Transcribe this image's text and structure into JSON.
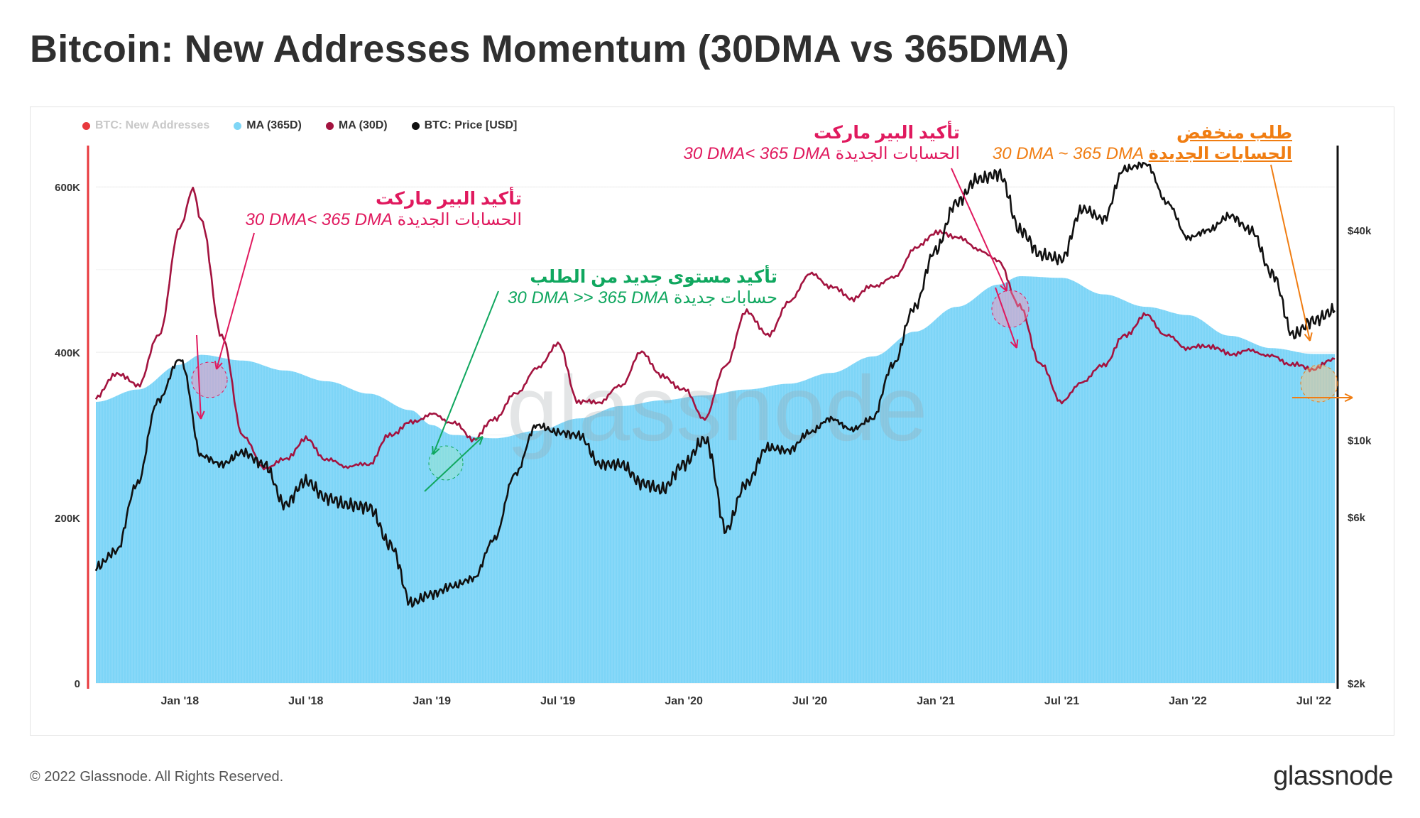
{
  "title": "Bitcoin: New Addresses Momentum (30DMA vs 365DMA)",
  "footer": "© 2022 Glassnode. All Rights Reserved.",
  "brand": "glassnode",
  "watermark": "glassnode",
  "legend": [
    {
      "label": "BTC: New Addresses",
      "color": "#e8383d",
      "muted": true
    },
    {
      "label": "MA (365D)",
      "color": "#7fd6f6"
    },
    {
      "label": "MA (30D)",
      "color": "#a3133f"
    },
    {
      "label": "BTC: Price [USD]",
      "color": "#111111"
    }
  ],
  "annotations": {
    "a1": {
      "heading": "تأكيد البير ماركت",
      "line": "الحسابات الجديدة",
      "lat": "30 DMA< 365 DMA",
      "color": "#e0195e"
    },
    "a2": {
      "heading": "تأكيد مستوى جديد من الطلب",
      "line": "حسابات جديدة",
      "lat": "30 DMA >> 365 DMA",
      "color": "#10a75f"
    },
    "a3": {
      "heading": "تأكيد البير ماركت",
      "line": "الحسابات الجديدة",
      "lat": "30 DMA< 365 DMA",
      "color": "#e0195e"
    },
    "a4": {
      "heading": "طلب منخفض",
      "line": "الحسابات الجديدة",
      "lat": "30 DMA ~ 365 DMA",
      "color": "#f07d12"
    }
  },
  "chart_data": {
    "type": "line",
    "x_ticks": [
      "Jan '18",
      "Jul '18",
      "Jan '19",
      "Jul '19",
      "Jan '20",
      "Jul '20",
      "Jan '21",
      "Jul '21",
      "Jan '22",
      "Jul '22"
    ],
    "y_left_ticks": [
      "0",
      "200K",
      "400K",
      "600K"
    ],
    "y_left_range": [
      0,
      650000
    ],
    "y_right_ticks": [
      "$2k",
      "$6k",
      "$10k",
      "$40k"
    ],
    "y_right_scale": "log",
    "x_range": [
      "2017-09",
      "2022-08"
    ],
    "series": [
      {
        "name": "MA (365D)",
        "style": "area",
        "points": [
          [
            "2017-09",
            340000
          ],
          [
            "2017-11",
            355000
          ],
          [
            "2018-01",
            385000
          ],
          [
            "2018-02",
            397000
          ],
          [
            "2018-04",
            390000
          ],
          [
            "2018-06",
            378000
          ],
          [
            "2018-08",
            365000
          ],
          [
            "2018-10",
            350000
          ],
          [
            "2018-12",
            330000
          ],
          [
            "2019-01",
            312000
          ],
          [
            "2019-02",
            300000
          ],
          [
            "2019-04",
            296000
          ],
          [
            "2019-06",
            305000
          ],
          [
            "2019-08",
            320000
          ],
          [
            "2019-10",
            335000
          ],
          [
            "2019-12",
            342000
          ],
          [
            "2020-02",
            348000
          ],
          [
            "2020-04",
            355000
          ],
          [
            "2020-06",
            362000
          ],
          [
            "2020-08",
            375000
          ],
          [
            "2020-10",
            395000
          ],
          [
            "2020-12",
            425000
          ],
          [
            "2021-02",
            455000
          ],
          [
            "2021-04",
            482000
          ],
          [
            "2021-05",
            492000
          ],
          [
            "2021-07",
            490000
          ],
          [
            "2021-09",
            470000
          ],
          [
            "2021-11",
            455000
          ],
          [
            "2022-01",
            445000
          ],
          [
            "2022-03",
            420000
          ],
          [
            "2022-05",
            405000
          ],
          [
            "2022-07",
            398000
          ],
          [
            "2022-08",
            398000
          ]
        ]
      },
      {
        "name": "MA (30D)",
        "style": "line",
        "points": [
          [
            "2017-09",
            345000
          ],
          [
            "2017-10",
            375000
          ],
          [
            "2017-11",
            360000
          ],
          [
            "2017-12",
            420000
          ],
          [
            "2018-01",
            550000
          ],
          [
            "2018-01-20",
            598000
          ],
          [
            "2018-02",
            560000
          ],
          [
            "2018-03",
            420000
          ],
          [
            "2018-04",
            300000
          ],
          [
            "2018-05",
            260000
          ],
          [
            "2018-06",
            270000
          ],
          [
            "2018-07",
            295000
          ],
          [
            "2018-08",
            270000
          ],
          [
            "2018-09",
            262000
          ],
          [
            "2018-10",
            265000
          ],
          [
            "2018-11",
            300000
          ],
          [
            "2018-12",
            315000
          ],
          [
            "2019-01",
            325000
          ],
          [
            "2019-02",
            315000
          ],
          [
            "2019-03",
            295000
          ],
          [
            "2019-04",
            320000
          ],
          [
            "2019-05",
            350000
          ],
          [
            "2019-06",
            380000
          ],
          [
            "2019-07",
            410000
          ],
          [
            "2019-08",
            340000
          ],
          [
            "2019-09",
            340000
          ],
          [
            "2019-10",
            360000
          ],
          [
            "2019-11",
            400000
          ],
          [
            "2019-12",
            370000
          ],
          [
            "2020-01",
            355000
          ],
          [
            "2020-02",
            320000
          ],
          [
            "2020-03",
            385000
          ],
          [
            "2020-04",
            450000
          ],
          [
            "2020-05",
            420000
          ],
          [
            "2020-06",
            460000
          ],
          [
            "2020-07",
            495000
          ],
          [
            "2020-08",
            480000
          ],
          [
            "2020-09",
            465000
          ],
          [
            "2020-10",
            480000
          ],
          [
            "2020-11",
            490000
          ],
          [
            "2020-12",
            525000
          ],
          [
            "2021-01",
            545000
          ],
          [
            "2021-02",
            540000
          ],
          [
            "2021-03",
            525000
          ],
          [
            "2021-04",
            510000
          ],
          [
            "2021-05",
            455000
          ],
          [
            "2021-06",
            385000
          ],
          [
            "2021-07",
            340000
          ],
          [
            "2021-08",
            365000
          ],
          [
            "2021-09",
            385000
          ],
          [
            "2021-10",
            420000
          ],
          [
            "2021-11",
            445000
          ],
          [
            "2021-12",
            420000
          ],
          [
            "2022-01",
            405000
          ],
          [
            "2022-02",
            408000
          ],
          [
            "2022-03",
            398000
          ],
          [
            "2022-04",
            402000
          ],
          [
            "2022-05",
            395000
          ],
          [
            "2022-06",
            385000
          ],
          [
            "2022-07",
            380000
          ],
          [
            "2022-08",
            392000
          ]
        ]
      },
      {
        "name": "BTC: Price [USD]",
        "style": "line",
        "axis": "right",
        "points": [
          [
            "2017-09",
            4300
          ],
          [
            "2017-10",
            4800
          ],
          [
            "2017-11",
            7500
          ],
          [
            "2017-12",
            13000
          ],
          [
            "2018-01",
            17000
          ],
          [
            "2018-02",
            9000
          ],
          [
            "2018-03",
            8500
          ],
          [
            "2018-04",
            9200
          ],
          [
            "2018-05",
            8500
          ],
          [
            "2018-06",
            6500
          ],
          [
            "2018-07",
            7600
          ],
          [
            "2018-08",
            6800
          ],
          [
            "2018-09",
            6500
          ],
          [
            "2018-10",
            6400
          ],
          [
            "2018-11",
            5000
          ],
          [
            "2018-12",
            3400
          ],
          [
            "2019-01",
            3600
          ],
          [
            "2019-02",
            3800
          ],
          [
            "2019-03",
            4000
          ],
          [
            "2019-04",
            5200
          ],
          [
            "2019-05",
            8000
          ],
          [
            "2019-06",
            11000
          ],
          [
            "2019-07",
            10500
          ],
          [
            "2019-08",
            10300
          ],
          [
            "2019-09",
            8500
          ],
          [
            "2019-10",
            8500
          ],
          [
            "2019-11",
            7500
          ],
          [
            "2019-12",
            7200
          ],
          [
            "2020-01",
            8500
          ],
          [
            "2020-02",
            10000
          ],
          [
            "2020-03",
            5500
          ],
          [
            "2020-04",
            7500
          ],
          [
            "2020-05",
            9500
          ],
          [
            "2020-06",
            9300
          ],
          [
            "2020-07",
            10500
          ],
          [
            "2020-08",
            11500
          ],
          [
            "2020-09",
            10700
          ],
          [
            "2020-10",
            11500
          ],
          [
            "2020-11",
            16500
          ],
          [
            "2020-12",
            24000
          ],
          [
            "2021-01",
            35000
          ],
          [
            "2021-02",
            48000
          ],
          [
            "2021-03",
            56000
          ],
          [
            "2021-04",
            58000
          ],
          [
            "2021-05",
            40000
          ],
          [
            "2021-06",
            34000
          ],
          [
            "2021-07",
            33000
          ],
          [
            "2021-08",
            46000
          ],
          [
            "2021-09",
            43000
          ],
          [
            "2021-10",
            60000
          ],
          [
            "2021-11",
            62000
          ],
          [
            "2021-12",
            48000
          ],
          [
            "2022-01",
            38000
          ],
          [
            "2022-02",
            40000
          ],
          [
            "2022-03",
            44000
          ],
          [
            "2022-04",
            40000
          ],
          [
            "2022-05",
            30000
          ],
          [
            "2022-06",
            20000
          ],
          [
            "2022-07",
            22000
          ],
          [
            "2022-08",
            23500
          ]
        ]
      }
    ]
  }
}
